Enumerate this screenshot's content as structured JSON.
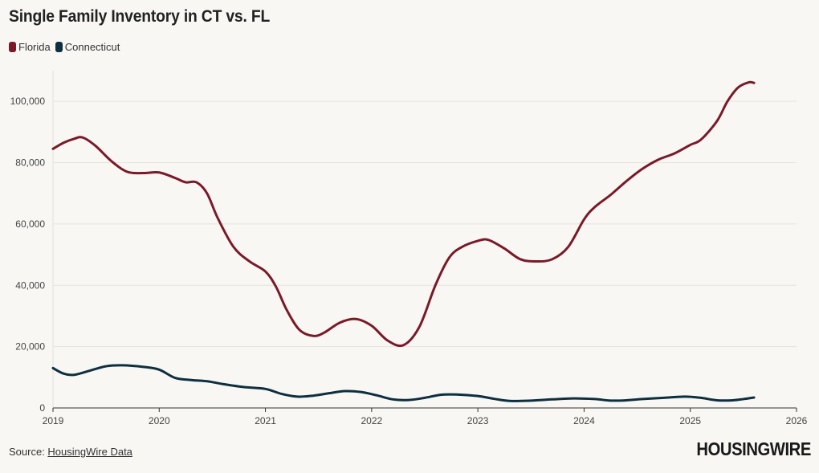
{
  "title": "Single Family Inventory in CT vs. FL",
  "legend": [
    {
      "label": "Florida",
      "color": "#7a1a28"
    },
    {
      "label": "Connecticut",
      "color": "#0d2f3f"
    }
  ],
  "source": {
    "prefix": "Source: ",
    "link_text": "HousingWire Data"
  },
  "logo": "HOUSINGWIRE",
  "chart_data": {
    "type": "line",
    "title": "Single Family Inventory in CT vs. FL",
    "xlabel": "",
    "ylabel": "",
    "xlim": [
      2019,
      2026
    ],
    "ylim": [
      0,
      110000
    ],
    "x_ticks": [
      "2019",
      "2020",
      "2021",
      "2022",
      "2023",
      "2024",
      "2025",
      "2026"
    ],
    "y_ticks": [
      "0",
      "20,000",
      "40,000",
      "60,000",
      "80,000",
      "100,000"
    ],
    "y_tick_values": [
      0,
      20000,
      40000,
      60000,
      80000,
      100000
    ],
    "grid": true,
    "series": [
      {
        "name": "Florida",
        "color": "#7a1a28",
        "points": [
          [
            2019.0,
            84500
          ],
          [
            2019.1,
            86500
          ],
          [
            2019.2,
            87800
          ],
          [
            2019.28,
            88200
          ],
          [
            2019.4,
            85500
          ],
          [
            2019.55,
            80500
          ],
          [
            2019.7,
            77000
          ],
          [
            2019.85,
            76600
          ],
          [
            2020.0,
            76800
          ],
          [
            2020.15,
            75000
          ],
          [
            2020.25,
            73600
          ],
          [
            2020.35,
            73600
          ],
          [
            2020.45,
            70000
          ],
          [
            2020.55,
            62000
          ],
          [
            2020.7,
            52500
          ],
          [
            2020.85,
            47800
          ],
          [
            2021.0,
            44500
          ],
          [
            2021.1,
            39500
          ],
          [
            2021.2,
            32000
          ],
          [
            2021.32,
            25500
          ],
          [
            2021.45,
            23500
          ],
          [
            2021.55,
            24500
          ],
          [
            2021.7,
            27800
          ],
          [
            2021.85,
            29000
          ],
          [
            2022.0,
            26800
          ],
          [
            2022.15,
            22000
          ],
          [
            2022.3,
            20500
          ],
          [
            2022.45,
            26500
          ],
          [
            2022.6,
            40000
          ],
          [
            2022.73,
            49000
          ],
          [
            2022.85,
            52500
          ],
          [
            2023.0,
            54500
          ],
          [
            2023.1,
            54800
          ],
          [
            2023.25,
            52000
          ],
          [
            2023.4,
            48500
          ],
          [
            2023.55,
            47800
          ],
          [
            2023.7,
            48500
          ],
          [
            2023.85,
            52500
          ],
          [
            2024.0,
            61500
          ],
          [
            2024.1,
            65500
          ],
          [
            2024.25,
            69500
          ],
          [
            2024.4,
            74000
          ],
          [
            2024.55,
            78000
          ],
          [
            2024.7,
            81000
          ],
          [
            2024.85,
            83000
          ],
          [
            2025.0,
            85800
          ],
          [
            2025.1,
            87500
          ],
          [
            2025.25,
            93500
          ],
          [
            2025.35,
            100000
          ],
          [
            2025.45,
            104500
          ],
          [
            2025.55,
            106200
          ],
          [
            2025.6,
            106000
          ]
        ]
      },
      {
        "name": "Connecticut",
        "color": "#0d2f3f",
        "points": [
          [
            2019.0,
            13000
          ],
          [
            2019.1,
            11200
          ],
          [
            2019.2,
            10800
          ],
          [
            2019.35,
            12200
          ],
          [
            2019.5,
            13600
          ],
          [
            2019.65,
            13900
          ],
          [
            2019.85,
            13400
          ],
          [
            2020.0,
            12500
          ],
          [
            2020.15,
            9800
          ],
          [
            2020.3,
            9100
          ],
          [
            2020.45,
            8700
          ],
          [
            2020.6,
            7800
          ],
          [
            2020.8,
            6800
          ],
          [
            2021.0,
            6200
          ],
          [
            2021.15,
            4600
          ],
          [
            2021.3,
            3700
          ],
          [
            2021.45,
            4000
          ],
          [
            2021.6,
            4800
          ],
          [
            2021.75,
            5500
          ],
          [
            2021.9,
            5200
          ],
          [
            2022.05,
            4100
          ],
          [
            2022.2,
            2800
          ],
          [
            2022.35,
            2600
          ],
          [
            2022.5,
            3300
          ],
          [
            2022.65,
            4300
          ],
          [
            2022.8,
            4400
          ],
          [
            2023.0,
            3900
          ],
          [
            2023.15,
            3000
          ],
          [
            2023.3,
            2300
          ],
          [
            2023.5,
            2400
          ],
          [
            2023.7,
            2800
          ],
          [
            2023.9,
            3100
          ],
          [
            2024.1,
            2900
          ],
          [
            2024.25,
            2400
          ],
          [
            2024.4,
            2500
          ],
          [
            2024.55,
            2900
          ],
          [
            2024.75,
            3300
          ],
          [
            2024.95,
            3700
          ],
          [
            2025.1,
            3300
          ],
          [
            2025.25,
            2500
          ],
          [
            2025.4,
            2500
          ],
          [
            2025.5,
            2900
          ],
          [
            2025.6,
            3400
          ]
        ]
      }
    ]
  }
}
